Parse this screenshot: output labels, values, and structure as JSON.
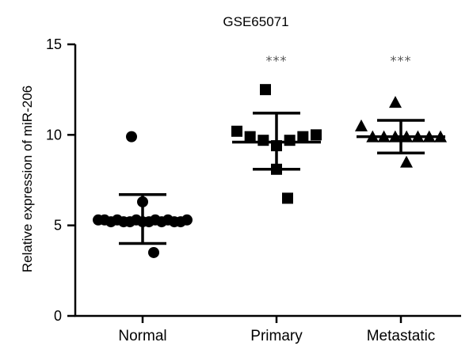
{
  "chart_data": {
    "type": "scatter",
    "title": "GSE65071",
    "ylabel": "Relative expression of miR-206",
    "xlabel": "",
    "ylim": [
      0,
      15
    ],
    "yticks": [
      "0",
      "5",
      "10",
      "15"
    ],
    "ytick_values": [
      0,
      5,
      10,
      15
    ],
    "categories": [
      "Normal",
      "Primary",
      "Metastatic"
    ],
    "significance": [
      "",
      "***",
      "***"
    ],
    "grid": false,
    "legend": "none",
    "groups": [
      {
        "label": "Normal",
        "marker": "circle",
        "values": [
          9.9,
          6.3,
          5.3,
          5.3,
          5.2,
          5.3,
          5.2,
          5.2,
          5.3,
          5.2,
          5.2,
          5.3,
          5.2,
          5.3,
          5.2,
          5.2,
          5.3,
          3.5
        ],
        "mean": 5.3,
        "sd_upper": 6.7,
        "sd_lower": 4.0
      },
      {
        "label": "Primary",
        "marker": "square",
        "values": [
          12.5,
          10.2,
          9.9,
          9.7,
          9.4,
          9.7,
          9.9,
          10.0,
          8.1,
          6.5
        ],
        "mean": 9.6,
        "sd_upper": 11.2,
        "sd_lower": 8.1
      },
      {
        "label": "Metastatic",
        "marker": "triangle",
        "values": [
          11.8,
          10.5,
          9.9,
          9.9,
          9.9,
          9.9,
          9.9,
          9.9,
          9.9,
          8.5
        ],
        "mean": 9.9,
        "sd_upper": 10.8,
        "sd_lower": 9.0
      }
    ]
  },
  "colors": {
    "marker": "#000000",
    "axis": "#000000",
    "significance": "#555555"
  }
}
